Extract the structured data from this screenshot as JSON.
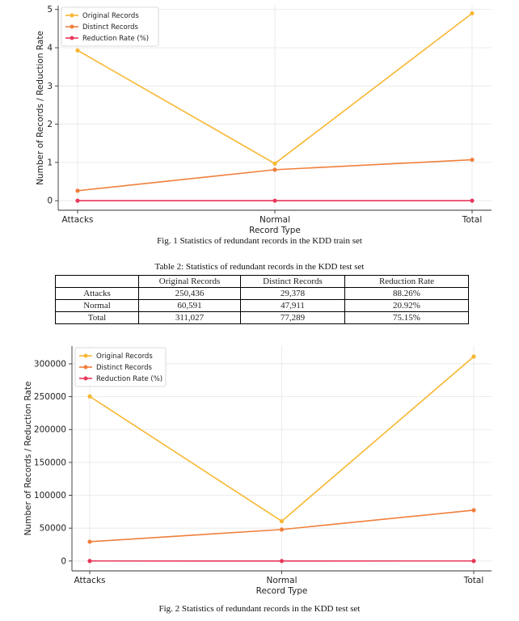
{
  "chart_data": [
    {
      "type": "line",
      "categories": [
        "Attacks",
        "Normal",
        "Total"
      ],
      "series": [
        {
          "name": "Original Records",
          "values": [
            3.93,
            0.97,
            4.9
          ],
          "color": "#F7B731"
        },
        {
          "name": "Distinct Records",
          "values": [
            0.26,
            0.81,
            1.07
          ],
          "color": "#F07F3C"
        },
        {
          "name": "Reduction Rate (%)",
          "values": [
            0.0,
            0.0,
            0.0
          ],
          "color": "#E8385A"
        }
      ],
      "xlabel": "Record Type",
      "ylabel": "Number of Records / Reduction Rate",
      "ylim": [
        -0.25,
        5.1
      ],
      "yticks": [
        0,
        1,
        2,
        3,
        4,
        5
      ],
      "grid": true,
      "legend": "top-left"
    },
    {
      "type": "line",
      "categories": [
        "Attacks",
        "Normal",
        "Total"
      ],
      "series": [
        {
          "name": "Original Records",
          "values": [
            250436,
            60591,
            311027
          ],
          "color": "#F7B731"
        },
        {
          "name": "Distinct Records",
          "values": [
            29378,
            47911,
            77289
          ],
          "color": "#F07F3C"
        },
        {
          "name": "Reduction Rate (%)",
          "values": [
            88.26,
            20.92,
            75.15
          ],
          "color": "#E8385A"
        }
      ],
      "xlabel": "Record Type",
      "ylabel": "Number of Records / Reduction Rate",
      "ylim": [
        -15000,
        327000
      ],
      "yticks": [
        0,
        50000,
        100000,
        150000,
        200000,
        250000,
        300000
      ],
      "grid": true,
      "legend": "top-left"
    }
  ],
  "captions": {
    "fig1": "Fig. 1 Statistics of redundant records in the KDD train set",
    "table_title": "Table 2: Statistics of redundant records in the KDD test set",
    "fig2": "Fig. 2 Statistics of redundant records in the KDD test set"
  },
  "table": {
    "headers": [
      "",
      "Original Records",
      "Distinct Records",
      "Reduction Rate"
    ],
    "rows": [
      {
        "label": "Attacks",
        "original": "250,436",
        "distinct": "29,378",
        "rate": "88.26%"
      },
      {
        "label": "Normal",
        "original": "60,591",
        "distinct": "47,911",
        "rate": "20.92%"
      },
      {
        "label": "Total",
        "original": "311,027",
        "distinct": "77,289",
        "rate": "75.15%"
      }
    ]
  }
}
